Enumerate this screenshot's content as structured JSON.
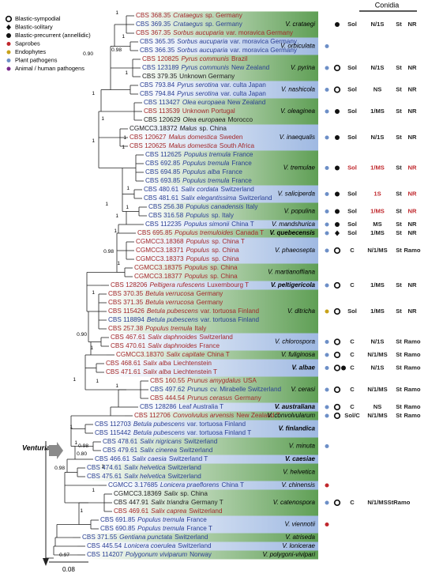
{
  "header": {
    "column_title": "Conidia"
  },
  "legend": [
    {
      "label": "Blastic-sympodial",
      "symbol": "open-circle"
    },
    {
      "label": "Blastic-solitary",
      "symbol": "diamond"
    },
    {
      "label": "Blastic-precurrent (annellidic)",
      "symbol": "filled-circle"
    },
    {
      "label": "Saprobes",
      "symbol": "dot",
      "color": "#c0282d"
    },
    {
      "label": "Endophytes",
      "symbol": "dot",
      "color": "#c8a21a"
    },
    {
      "label": "Plant pathogens",
      "symbol": "dot",
      "color": "#6d8fc7"
    },
    {
      "label": "Animal / human pathogens",
      "symbol": "dot",
      "color": "#7a2a8a"
    }
  ],
  "genus_label": "Venturia",
  "scale_label": "0.08",
  "leaves": [
    {
      "strain": "CBS 368.35",
      "host": "Crataegus",
      "origin": "sp. Germany",
      "color": "#a3282b"
    },
    {
      "strain": "CBS 369.35",
      "host": "Crataegus",
      "origin": "sp. Germany",
      "color": "#2a3f94"
    },
    {
      "strain": "CBS 367.35",
      "host": "Sorbus aucuparia",
      "origin": "var. moravica Germany",
      "color": "#a3282b"
    },
    {
      "strain": "CBS 365.35",
      "host": "Sorbus aucuparia",
      "origin": "var. moravica Germany",
      "color": "#2a3f94"
    },
    {
      "strain": "CBS 366.35",
      "host": "Sorbus aucuparia",
      "origin": "var. moravica Germany",
      "color": "#2a3f94"
    },
    {
      "strain": "CBS 120825",
      "host": "Pyrus communis",
      "origin": "Brazil",
      "color": "#a3282b"
    },
    {
      "strain": "CBS 123189",
      "host": "Pyrus communis",
      "origin": "New Zealand",
      "color": "#2a3f94"
    },
    {
      "strain": "CBS 379.35",
      "origin": "Unknown Germany",
      "color": "#222222"
    },
    {
      "strain": "CBS 793.84",
      "host": "Pyrus serotina",
      "origin": "var. culta Japan",
      "color": "#2a3f94"
    },
    {
      "strain": "CBS 794.84",
      "host": "Pyrus serotina",
      "origin": "var. culta Japan",
      "color": "#2a3f94"
    },
    {
      "strain": "CBS 113427",
      "host": "Olea europaea",
      "origin": "New Zealand",
      "color": "#2a3f94"
    },
    {
      "strain": "CBS 113539",
      "origin": "Unknown Portugal",
      "color": "#a3282b"
    },
    {
      "strain": "CBS 120629",
      "host": "Olea europaea",
      "origin": "Morocco",
      "color": "#222222"
    },
    {
      "strain": "CGMCC3.18372",
      "host": "Malus",
      "origin": "sp. China",
      "color": "#222222"
    },
    {
      "strain": "CBS 120627",
      "host": "Malus domestica",
      "origin": "Sweden",
      "color": "#a3282b"
    },
    {
      "strain": "CBS 120625",
      "host": "Malus domestica",
      "origin": "South Africa",
      "color": "#a3282b"
    },
    {
      "strain": "CBS 112625",
      "host": "Populus tremula",
      "origin": "France",
      "color": "#2a3f94"
    },
    {
      "strain": "CBS 692.85",
      "host": "Populus tremula",
      "origin": "France",
      "color": "#2a3f94"
    },
    {
      "strain": "CBS 694.85",
      "host": "Populus alba",
      "origin": "France",
      "color": "#2a3f94"
    },
    {
      "strain": "CBS 693.85",
      "host": "Populus tremula",
      "origin": "France",
      "color": "#2a3f94"
    },
    {
      "strain": "CBS 480.61",
      "host": "Salix cordata",
      "origin": "Switzerland",
      "color": "#2a3f94"
    },
    {
      "strain": "CBS 481.61",
      "host": "Salix elegantissima",
      "origin": "Switzerland",
      "color": "#2a3f94"
    },
    {
      "strain": "CBS 256.38",
      "host": "Populus canadensis",
      "origin": "Italy",
      "color": "#2a3f94"
    },
    {
      "strain": "CBS 316.58",
      "host": "Populus",
      "origin": "sp. Italy",
      "color": "#2a3f94"
    },
    {
      "strain": "CBS 112235",
      "host": "Populus simonii",
      "origin": "China T",
      "color": "#2a3f94"
    },
    {
      "strain": "CBS 695.85",
      "host": "Populus tremuloides",
      "origin": "Canada T",
      "color": "#a3282b"
    },
    {
      "strain": "CGMCC3.18368",
      "host": "Populus",
      "origin": "sp. China T",
      "color": "#a3282b"
    },
    {
      "strain": "CGMCC3.18371",
      "host": "Populus",
      "origin": "sp. China",
      "color": "#a3282b"
    },
    {
      "strain": "CGMCC3.18373",
      "host": "Populus",
      "origin": "sp. China",
      "color": "#a3282b"
    },
    {
      "strain": "CGMCC3.18375",
      "host": "Populus",
      "origin": "sp. China",
      "color": "#a3282b"
    },
    {
      "strain": "CGMCC3.18377",
      "host": "Populus",
      "origin": "sp. China",
      "color": "#a3282b"
    },
    {
      "strain": "CBS 128206",
      "host": "Peltigera rufescens",
      "origin": "Luxembourg T",
      "color": "#a3282b"
    },
    {
      "strain": "CBS 370.35",
      "host": "Betula verrucosa",
      "origin": "Germany",
      "color": "#a3282b"
    },
    {
      "strain": "CBS 371.35",
      "host": "Betula verrucosa",
      "origin": "Germany",
      "color": "#a3282b"
    },
    {
      "strain": "CBS 115426",
      "host": "Betula pubescens",
      "origin": "var. tortuosa Finland",
      "color": "#a3282b"
    },
    {
      "strain": "CBS 118894",
      "host": "Betula pubescens",
      "origin": "var. tortuosa Finland",
      "color": "#2a3f94"
    },
    {
      "strain": "CBS 257.38",
      "host": "Populus tremula",
      "origin": "Italy",
      "color": "#a3282b"
    },
    {
      "strain": "CBS 467.61",
      "host": "Salix daphnoides",
      "origin": "Switzerland",
      "color": "#a3282b"
    },
    {
      "strain": "CBS 470.61",
      "host": "Salix daphnoides",
      "origin": "France",
      "color": "#a3282b"
    },
    {
      "strain": "CGMCC3.18370",
      "host": "Salix capitate",
      "origin": "China T",
      "color": "#a3282b"
    },
    {
      "strain": "CBS 468.61",
      "host": "Salix alba",
      "origin": "Liechtenstein",
      "color": "#a3282b"
    },
    {
      "strain": "CBS 471.61",
      "host": "Salix alba",
      "origin": "Liechtenstein T",
      "color": "#a3282b"
    },
    {
      "strain": "CBS 160.55",
      "host": "Prunus amygdalus",
      "origin": "USA",
      "color": "#a3282b"
    },
    {
      "strain": "CBS 497.62",
      "host": "Prunus",
      "origin": "cv. Mirabelle Switzerland",
      "color": "#2a3f94"
    },
    {
      "strain": "CBS 444.54",
      "host": "Prunus cerasus",
      "origin": "Germany",
      "color": "#a3282b"
    },
    {
      "strain": "CBS 128286",
      "origin": "Leaf Australia T",
      "color": "#2a3f94"
    },
    {
      "strain": "CBS 112706",
      "host": "Convolvulus arvensis",
      "origin": "New Zealand T",
      "color": "#a3282b"
    },
    {
      "strain": "CBS 112703",
      "host": "Betula pubescens",
      "origin": "var. tortuosa Finland",
      "color": "#2a3f94"
    },
    {
      "strain": "CBS 115442",
      "host": "Betula pubescens",
      "origin": "var. tortuosa Finland T",
      "color": "#2a3f94"
    },
    {
      "strain": "CBS 478.61",
      "host": "Salix nigricans",
      "origin": "Switzerland",
      "color": "#2a3f94"
    },
    {
      "strain": "CBS 479.61",
      "host": "Salix cinerea",
      "origin": "Switzerland",
      "color": "#2a3f94"
    },
    {
      "strain": "CBS 466.61",
      "host": "Salix caesia",
      "origin": "Switzerland T",
      "color": "#2a3f94"
    },
    {
      "strain": "CBS 474.61",
      "host": "Salix helvetica",
      "origin": "Switzerland",
      "color": "#2a3f94"
    },
    {
      "strain": "CBS 475.61",
      "host": "Salix helvetica",
      "origin": "Switzerland",
      "color": "#2a3f94"
    },
    {
      "strain": "CGMCC 3.17685",
      "host": "Lonicera praeflorens",
      "origin": "China T",
      "color": "#2a3f94"
    },
    {
      "strain": "CGMCC3.18369",
      "host": "Salix",
      "origin": "sp. China",
      "color": "#222222"
    },
    {
      "strain": "CBS 447.91",
      "host": "Salix triandra",
      "origin": "Germany T",
      "color": "#222222"
    },
    {
      "strain": "CBS 469.61",
      "host": "Salix caprea",
      "origin": "Switzerland",
      "color": "#a3282b"
    },
    {
      "strain": "CBS 691.85",
      "host": "Populus tremula",
      "origin": "France",
      "color": "#2a3f94"
    },
    {
      "strain": "CBS 690.85",
      "host": "Populus tremula",
      "origin": "France T",
      "color": "#2a3f94"
    },
    {
      "strain": "CBS 371.55",
      "host": "Gentiana punctata",
      "origin": "Switzerland",
      "color": "#2a3f94"
    },
    {
      "strain": "CBS 445.54",
      "host": "Lonicera coerulea",
      "origin": "Switzerland",
      "color": "#2a3f94"
    },
    {
      "strain": "CBS 114207",
      "host": "Polygonum viviparum",
      "origin": "Norway",
      "color": "#2a3f94"
    }
  ],
  "clades": [
    {
      "name": "V. crataegi",
      "first": 0,
      "last": 2,
      "band": "green",
      "symbol": "filled-circle",
      "traits": [
        "Sol",
        "N/1S",
        "St",
        "NR"
      ]
    },
    {
      "name": "V. orbiculata",
      "first": 3,
      "last": 4,
      "band": "blue",
      "dot": "#6d8fc7"
    },
    {
      "name": "V. pyrina",
      "first": 5,
      "last": 7,
      "band": "green",
      "dot": "#6d8fc7",
      "symbol": "open-circle",
      "traits": [
        "Sol",
        "N/1S",
        "St",
        "NR"
      ]
    },
    {
      "name": "V. nashicola",
      "first": 8,
      "last": 9,
      "band": "blue",
      "dot": "#6d8fc7",
      "symbol": "open-circle",
      "traits": [
        "Sol",
        "NS",
        "St",
        "NR"
      ]
    },
    {
      "name": "V. oleaginea",
      "first": 10,
      "last": 12,
      "band": "green",
      "dot": "#6d8fc7",
      "symbol": "filled-circle",
      "traits": [
        "Sol",
        "1/MS",
        "St",
        "NR"
      ]
    },
    {
      "name": "V. inaequalis",
      "first": 13,
      "last": 15,
      "band": "blue",
      "dot": "#6d8fc7",
      "symbol": "filled-circle",
      "traits": [
        "Sol",
        "N/1S",
        "St",
        "NR"
      ]
    },
    {
      "name": "V. tremulae",
      "first": 16,
      "last": 19,
      "band": "green",
      "dot": "#6d8fc7",
      "symbol": "filled-circle",
      "traits": [
        "Sol",
        "1/MS",
        "St",
        "NR"
      ],
      "trait_colors": [
        "#c0282d",
        "#c0282d",
        "#222222",
        "#c0282d"
      ]
    },
    {
      "name": "V. saliciperda",
      "first": 20,
      "last": 21,
      "band": "blue",
      "dot": "#6d8fc7",
      "symbol": "filled-circle",
      "traits": [
        "Sol",
        "1S",
        "St",
        "NR"
      ],
      "trait_colors": [
        "#222222",
        "#c0282d",
        "#222222",
        "#c0282d"
      ]
    },
    {
      "name": "V. populina",
      "first": 22,
      "last": 23,
      "band": "green",
      "dot": "#6d8fc7",
      "symbol": "filled-circle",
      "traits": [
        "Sol",
        "1/MS",
        "St",
        "NR"
      ],
      "trait_colors": [
        "#222222",
        "#c0282d",
        "#222222",
        "#c0282d"
      ]
    },
    {
      "name": "V. mandshurica",
      "first": 24,
      "last": 24,
      "band": "blue",
      "dot": "#6d8fc7",
      "symbol": "filled-circle",
      "traits": [
        "Sol",
        "MS",
        "St",
        "NR"
      ]
    },
    {
      "name": "V. quebecensis",
      "first": 25,
      "last": 25,
      "band": "green",
      "bold": true,
      "dot": "#6d8fc7",
      "symbol": "diamond",
      "traits": [
        "Sol",
        "1/MS",
        "St",
        "NR"
      ]
    },
    {
      "name": "V. phaeosepta",
      "first": 26,
      "last": 28,
      "band": "blue",
      "dot": "#6d8fc7",
      "symbol": "open-circle",
      "traits": [
        "C",
        "N/1/MS",
        "St",
        "Ramo"
      ]
    },
    {
      "name": "V. martianoffiana",
      "first": 29,
      "last": 30,
      "band": "green"
    },
    {
      "name": "V. peltigericola",
      "first": 31,
      "last": 31,
      "band": "blue",
      "bold": true,
      "dot": "#6d8fc7",
      "symbol": "open-circle",
      "traits": [
        "C",
        "1/MS",
        "St",
        "NR"
      ]
    },
    {
      "name": "V. ditricha",
      "first": 32,
      "last": 36,
      "band": "green",
      "dot": "#c8a21a",
      "symbol": "open-circle",
      "traits": [
        "Sol",
        "1/MS",
        "St",
        "NR"
      ]
    },
    {
      "name": "V. chlorospora",
      "first": 37,
      "last": 38,
      "band": "blue",
      "dot": "#6d8fc7",
      "symbol": "open-circle",
      "traits": [
        "C",
        "N/1S",
        "St",
        "Ramo"
      ]
    },
    {
      "name": "V. fuliginosa",
      "first": 39,
      "last": 39,
      "band": "green",
      "dot": "#6d8fc7",
      "symbol": "open-circle",
      "traits": [
        "C",
        "N/1/MS",
        "St",
        "Ramo"
      ]
    },
    {
      "name": "V. albae",
      "first": 40,
      "last": 41,
      "band": "blue",
      "bold": true,
      "dot": "#6d8fc7",
      "symbol": "open-circle+filled-circle",
      "traits": [
        "C",
        "N/1S",
        "St",
        "Ramo"
      ]
    },
    {
      "name": "V. cerasi",
      "first": 42,
      "last": 44,
      "band": "green",
      "dot": "#6d8fc7",
      "symbol": "open-circle",
      "traits": [
        "C",
        "N/1/MS",
        "St",
        "Ramo"
      ]
    },
    {
      "name": "V. australiana",
      "first": 45,
      "last": 45,
      "band": "blue",
      "bold": true,
      "dot": "#6d8fc7",
      "symbol": "open-circle",
      "traits": [
        "C",
        "NS",
        "St",
        "Ramo"
      ]
    },
    {
      "name": "V. convolvularum",
      "first": 46,
      "last": 46,
      "band": "green",
      "dot": "#6d8fc7",
      "symbol": "open-circle",
      "traits": [
        "Sol/C",
        "N/1/MS",
        "St",
        "Ramo"
      ]
    },
    {
      "name": "V. finlandica",
      "first": 47,
      "last": 48,
      "band": "blue",
      "bold": true
    },
    {
      "name": "V. minuta",
      "first": 49,
      "last": 50,
      "band": "green",
      "dot": "#6d8fc7"
    },
    {
      "name": "V. caesiae",
      "first": 51,
      "last": 51,
      "band": "blue",
      "bold": true
    },
    {
      "name": "V. helvetica",
      "first": 52,
      "last": 53,
      "band": "green"
    },
    {
      "name": "V. chinensis",
      "first": 54,
      "last": 54,
      "band": "blue",
      "dot": "#c0282d"
    },
    {
      "name": "V. catenospora",
      "first": 55,
      "last": 57,
      "band": "green",
      "dot": "#6d8fc7",
      "symbol": "open-circle",
      "traits": [
        "C",
        "N/1/MS",
        "StRamo"
      ]
    },
    {
      "name": "V. viennotii",
      "first": 58,
      "last": 59,
      "band": "blue",
      "dot": "#c0282d"
    },
    {
      "name": "V. atriseda",
      "first": 60,
      "last": 60,
      "band": "green"
    },
    {
      "name": "V. lonicerae",
      "first": 61,
      "last": 61,
      "band": "blue"
    },
    {
      "name": "V. polygoni-vivipari",
      "first": 62,
      "last": 62,
      "band": "green"
    }
  ],
  "supports": [
    "1",
    "1",
    "0.90",
    "0.98",
    "1",
    "1",
    "1",
    "1",
    "1",
    "1",
    "1",
    "1",
    "1",
    "1",
    "0.98",
    "1",
    "1",
    "1",
    "0.90",
    "1",
    "1",
    "1",
    "1",
    "1",
    "1",
    "1",
    "0.98",
    "0.80",
    "0.98",
    "1",
    "0.97",
    "1"
  ]
}
